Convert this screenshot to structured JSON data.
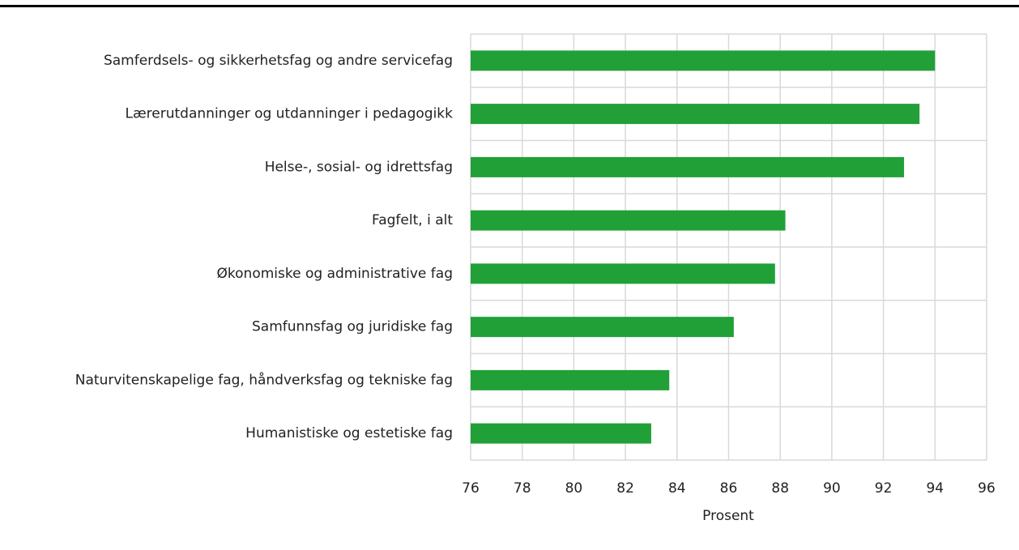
{
  "chart_data": {
    "type": "hbar",
    "categories": [
      "Samferdsels- og sikkerhetsfag og andre servicefag",
      "Lærerutdanninger og utdanninger i pedagogikk",
      "Helse-, sosial- og idrettsfag",
      "Fagfelt, i alt",
      "Økonomiske og administrative fag",
      "Samfunnsfag og juridiske fag",
      "Naturvitenskapelige fag, håndverksfag og tekniske fag",
      "Humanistiske og estetiske fag"
    ],
    "values": [
      94.0,
      93.4,
      92.8,
      88.2,
      87.8,
      86.2,
      83.7,
      83.0
    ],
    "color": "#21a038",
    "xlabel": "Prosent",
    "xlim": [
      76,
      96
    ],
    "xticks": [
      76,
      78,
      80,
      82,
      84,
      86,
      88,
      90,
      92,
      94,
      96
    ],
    "grid": true
  }
}
